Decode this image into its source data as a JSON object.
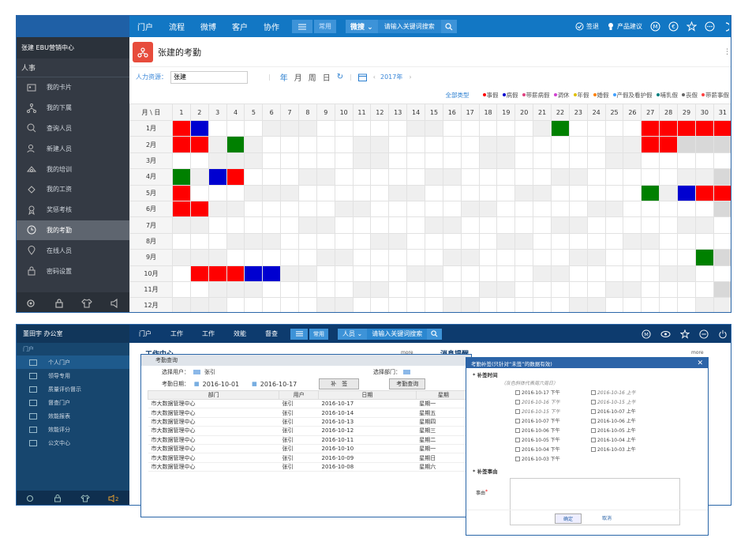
{
  "screen1": {
    "nav": {
      "items": [
        "门户",
        "流程",
        "微博",
        "客户",
        "协作"
      ],
      "common_label": "常用",
      "search_select": "微搜",
      "search_placeholder": "请输入关键词搜索",
      "signin_label": "签退",
      "suggest_label": "产品建议"
    },
    "sidebar": {
      "org": "张建 EBU营销中心",
      "section": "人事",
      "items": [
        {
          "label": "我的卡片",
          "icon": "id-card-icon"
        },
        {
          "label": "我的下属",
          "icon": "org-chart-icon"
        },
        {
          "label": "查询人员",
          "icon": "search-icon"
        },
        {
          "label": "新建人员",
          "icon": "add-user-icon"
        },
        {
          "label": "我的培训",
          "icon": "training-icon"
        },
        {
          "label": "我的工资",
          "icon": "salary-icon"
        },
        {
          "label": "奖惩考核",
          "icon": "award-icon"
        },
        {
          "label": "我的考勤",
          "icon": "clock-icon"
        },
        {
          "label": "在线人员",
          "icon": "location-icon"
        },
        {
          "label": "密码设置",
          "icon": "lock-icon"
        }
      ],
      "active_index": 7
    },
    "page_title": "张建的考勤",
    "filter": {
      "label": "人力资源：",
      "value": "张建",
      "btn_year": "年",
      "btn_month": "月",
      "btn_week": "周",
      "btn_day": "日",
      "year": "2017年"
    },
    "legend": {
      "all": "全部类型",
      "items": [
        {
          "label": "事假",
          "color": "#ff0000"
        },
        {
          "label": "病假",
          "color": "#0000d0"
        },
        {
          "label": "带薪病假",
          "color": "#e04080"
        },
        {
          "label": "调休",
          "color": "#d040d0"
        },
        {
          "label": "年假",
          "color": "#e0c000"
        },
        {
          "label": "婚假",
          "color": "#ff8000"
        },
        {
          "label": "产假及看护假",
          "color": "#40a0ff"
        },
        {
          "label": "哺乳假",
          "color": "#008080"
        },
        {
          "label": "丧假",
          "color": "#666666"
        },
        {
          "label": "带薪事假",
          "color": "#ff4040"
        }
      ]
    },
    "calendar": {
      "corner": "月 \\ 日",
      "months": [
        "1月",
        "2月",
        "3月",
        "4月",
        "5月",
        "6月",
        "7月",
        "8月",
        "9月",
        "10月",
        "11月",
        "12月"
      ],
      "days": 31,
      "leaves": [
        {
          "m": 0,
          "d": 1,
          "c": "red"
        },
        {
          "m": 0,
          "d": 2,
          "c": "blue"
        },
        {
          "m": 0,
          "d": 22,
          "c": "green"
        },
        {
          "m": 0,
          "d": 27,
          "c": "red"
        },
        {
          "m": 0,
          "d": 28,
          "c": "red"
        },
        {
          "m": 0,
          "d": 29,
          "c": "red"
        },
        {
          "m": 0,
          "d": 30,
          "c": "red"
        },
        {
          "m": 0,
          "d": 31,
          "c": "red"
        },
        {
          "m": 1,
          "d": 1,
          "c": "red"
        },
        {
          "m": 1,
          "d": 2,
          "c": "red"
        },
        {
          "m": 1,
          "d": 4,
          "c": "green"
        },
        {
          "m": 1,
          "d": 27,
          "c": "red"
        },
        {
          "m": 1,
          "d": 28,
          "c": "red"
        },
        {
          "m": 3,
          "d": 1,
          "c": "green"
        },
        {
          "m": 3,
          "d": 3,
          "c": "blue"
        },
        {
          "m": 3,
          "d": 4,
          "c": "red"
        },
        {
          "m": 4,
          "d": 1,
          "c": "red"
        },
        {
          "m": 4,
          "d": 27,
          "c": "green"
        },
        {
          "m": 4,
          "d": 29,
          "c": "blue"
        },
        {
          "m": 4,
          "d": 30,
          "c": "red"
        },
        {
          "m": 4,
          "d": 31,
          "c": "red"
        },
        {
          "m": 5,
          "d": 1,
          "c": "red"
        },
        {
          "m": 5,
          "d": 2,
          "c": "red"
        },
        {
          "m": 8,
          "d": 30,
          "c": "green"
        },
        {
          "m": 9,
          "d": 2,
          "c": "red"
        },
        {
          "m": 9,
          "d": 3,
          "c": "red"
        },
        {
          "m": 9,
          "d": 4,
          "c": "red"
        },
        {
          "m": 9,
          "d": 5,
          "c": "blue"
        },
        {
          "m": 9,
          "d": 6,
          "c": "blue"
        }
      ],
      "month_lengths": [
        31,
        28,
        31,
        30,
        31,
        30,
        31,
        31,
        30,
        31,
        30,
        31
      ],
      "weekend_start": [
        7,
        4,
        4,
        1,
        6,
        3,
        1,
        5,
        2,
        7,
        4,
        2
      ]
    }
  },
  "screen2": {
    "nav": {
      "items": [
        "门户",
        "工作",
        "工作",
        "效能",
        "督查"
      ],
      "common_label": "常用",
      "search_select": "人员",
      "search_placeholder": "请输入关键词搜索"
    },
    "sidebar": {
      "org": "董田宇 办公室",
      "section": "门户",
      "items": [
        "个人门户",
        "领导专用",
        "质量评价督示",
        "督查门户",
        "效能报表",
        "效能评分",
        "公文中心"
      ]
    },
    "bg_title": "工作中心",
    "bg_msg": "消息提醒",
    "bg_more": "more",
    "query": {
      "title": "考勤查询",
      "user_label": "选择用户：",
      "user": "张引",
      "dept_label": "选择部门：",
      "date_label": "考勤日期：",
      "date_from": "2016-10-01",
      "date_to": "2016-10-17",
      "btn_supp": "补　签",
      "btn_query": "考勤查询",
      "headers": [
        "部门",
        "用户",
        "日期",
        "星期"
      ],
      "rows": [
        [
          "市大数据管理中心",
          "张引",
          "2016-10-17",
          "星期一"
        ],
        [
          "市大数据管理中心",
          "张引",
          "2016-10-14",
          "星期五"
        ],
        [
          "市大数据管理中心",
          "张引",
          "2016-10-13",
          "星期四"
        ],
        [
          "市大数据管理中心",
          "张引",
          "2016-10-12",
          "星期三"
        ],
        [
          "市大数据管理中心",
          "张引",
          "2016-10-11",
          "星期二"
        ],
        [
          "市大数据管理中心",
          "张引",
          "2016-10-10",
          "星期一"
        ],
        [
          "市大数据管理中心",
          "张引",
          "2016-10-09",
          "星期日"
        ],
        [
          "市大数据管理中心",
          "张引",
          "2016-10-08",
          "星期六"
        ]
      ]
    },
    "supp": {
      "title": "考勤补签(只针对“未签”的数据有效)",
      "time_label": "* 补签时间",
      "hint": "（灰色斜体代表周六周日）",
      "items": [
        {
          "t": "2016-10-17 下午",
          "w": false
        },
        {
          "t": "2016-10-16 上午",
          "w": true
        },
        {
          "t": "2016-10-16 下午",
          "w": true
        },
        {
          "t": "2016-10-15 上午",
          "w": true
        },
        {
          "t": "2016-10-15 下午",
          "w": true
        },
        {
          "t": "2016-10-07 上午",
          "w": false
        },
        {
          "t": "2016-10-07 下午",
          "w": false
        },
        {
          "t": "2016-10-06 上午",
          "w": false
        },
        {
          "t": "2016-10-06 下午",
          "w": false
        },
        {
          "t": "2016-10-05 上午",
          "w": false
        },
        {
          "t": "2016-10-05 下午",
          "w": false
        },
        {
          "t": "2016-10-04 上午",
          "w": false
        },
        {
          "t": "2016-10-04 下午",
          "w": false
        },
        {
          "t": "2016-10-03 上午",
          "w": false
        },
        {
          "t": "2016-10-03 下午",
          "w": false
        }
      ],
      "reason_label": "* 补签事由",
      "reason_field": "事由",
      "ok": "确定",
      "cancel": "取消"
    }
  }
}
